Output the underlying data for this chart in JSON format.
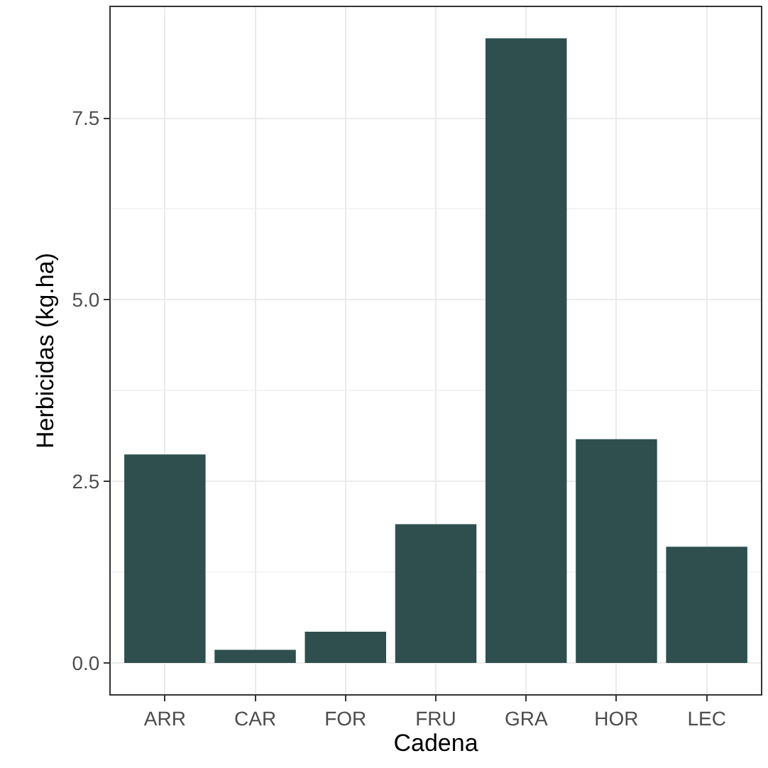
{
  "chart_data": {
    "type": "bar",
    "xlabel": "Cadena",
    "ylabel": "Herbicidas (kg.ha)",
    "categories": [
      "ARR",
      "CAR",
      "FOR",
      "FRU",
      "GRA",
      "HOR",
      "LEC"
    ],
    "values": [
      2.87,
      0.18,
      0.43,
      1.91,
      8.6,
      3.08,
      1.6
    ],
    "color": "#2f4f4f",
    "ylim": [
      -0.43,
      9.03
    ],
    "yticks": [
      {
        "value": 0,
        "label": "0.0"
      },
      {
        "value": 2.5,
        "label": "2.5"
      },
      {
        "value": 5,
        "label": "5.0"
      },
      {
        "value": 7.5,
        "label": "7.5"
      }
    ],
    "grid": true
  }
}
